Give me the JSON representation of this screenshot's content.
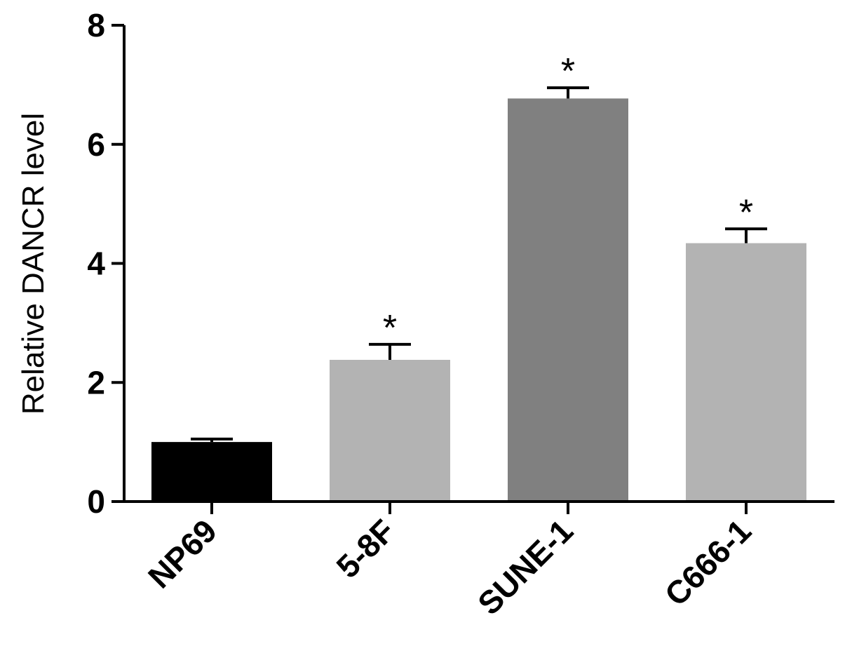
{
  "chart_data": {
    "type": "bar",
    "title": "",
    "xlabel": "",
    "ylabel": "Relative DANCR level",
    "categories": [
      "NP69",
      "5-8F",
      "SUNE-1",
      "C666-1"
    ],
    "values": [
      1.0,
      2.38,
      6.77,
      4.34
    ],
    "error": [
      0.05,
      0.26,
      0.18,
      0.24
    ],
    "significance": [
      "",
      "*",
      "*",
      "*"
    ],
    "bar_colors": [
      "#000000",
      "#b3b3b3",
      "#808080",
      "#b3b3b3"
    ],
    "ylim": [
      0,
      8
    ],
    "yticks": [
      0,
      2,
      4,
      6,
      8
    ],
    "grid": false,
    "legend": "none"
  }
}
